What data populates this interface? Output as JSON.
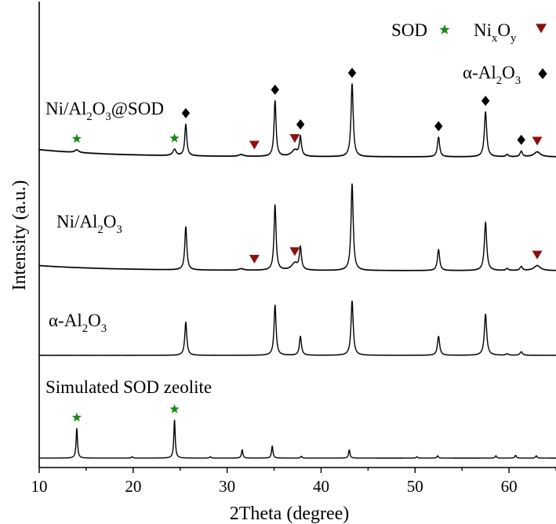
{
  "chart_data": {
    "type": "line",
    "title": "",
    "xlabel": "2Theta (degree)",
    "ylabel": "Intensity (a.u.)",
    "xlim": [
      10,
      65
    ],
    "x_ticks": [
      "10",
      "20",
      "30",
      "40",
      "50",
      "60"
    ],
    "y_ticks_shown": false,
    "legend": {
      "placement": "top-right",
      "entries": [
        {
          "label": "SOD",
          "symbol": "star",
          "color": "#1a8a1a"
        },
        {
          "label_base": "Ni",
          "sub1": "x",
          "label_mid": "O",
          "sub2": "y",
          "symbol": "triangle-down",
          "color": "#8b1010"
        },
        {
          "label_base": "α-Al",
          "sub1": "2",
          "label_mid": "O",
          "sub2": "3",
          "symbol": "diamond",
          "color": "#000000"
        }
      ]
    },
    "series": [
      {
        "name_parts": [
          "Ni/Al",
          "2",
          "O",
          "3",
          "@SOD"
        ],
        "baseline": 0.8,
        "noise": 0.04,
        "peaks": [
          {
            "x": 14.0,
            "h": 0.3,
            "w": 0.25
          },
          {
            "x": 24.4,
            "h": 0.7,
            "w": 0.2
          },
          {
            "x": 25.6,
            "h": 3.5,
            "w": 0.13
          },
          {
            "x": 31.5,
            "h": 0.2,
            "w": 0.3
          },
          {
            "x": 35.1,
            "h": 6.2,
            "w": 0.13
          },
          {
            "x": 37.2,
            "h": 0.7,
            "w": 0.4
          },
          {
            "x": 37.8,
            "h": 2.1,
            "w": 0.13
          },
          {
            "x": 43.3,
            "h": 8.1,
            "w": 0.14
          },
          {
            "x": 52.5,
            "h": 2.2,
            "w": 0.14
          },
          {
            "x": 57.5,
            "h": 5.0,
            "w": 0.15
          },
          {
            "x": 59.8,
            "h": 0.25,
            "w": 0.15
          },
          {
            "x": 61.3,
            "h": 0.6,
            "w": 0.15
          },
          {
            "x": 63.0,
            "h": 0.55,
            "w": 0.4
          }
        ]
      },
      {
        "name_parts": [
          "Ni/Al",
          "2",
          "O",
          "3"
        ],
        "baseline": 0.5,
        "noise": 0.03,
        "peaks": [
          {
            "x": 25.6,
            "h": 4.3,
            "w": 0.13
          },
          {
            "x": 31.5,
            "h": 0.15,
            "w": 0.3
          },
          {
            "x": 35.1,
            "h": 6.5,
            "w": 0.13
          },
          {
            "x": 37.2,
            "h": 0.7,
            "w": 0.4
          },
          {
            "x": 37.8,
            "h": 2.2,
            "w": 0.13
          },
          {
            "x": 43.3,
            "h": 8.6,
            "w": 0.14
          },
          {
            "x": 52.5,
            "h": 2.1,
            "w": 0.14
          },
          {
            "x": 57.5,
            "h": 4.8,
            "w": 0.15
          },
          {
            "x": 59.8,
            "h": 0.2,
            "w": 0.15
          },
          {
            "x": 61.3,
            "h": 0.4,
            "w": 0.15
          },
          {
            "x": 63.0,
            "h": 0.5,
            "w": 0.4
          }
        ]
      },
      {
        "name_parts": [
          "α-Al",
          "2",
          "O",
          "3"
        ],
        "baseline": 0.0,
        "noise": 0.015,
        "peaks": [
          {
            "x": 25.6,
            "h": 3.3,
            "w": 0.13
          },
          {
            "x": 35.1,
            "h": 5.0,
            "w": 0.13
          },
          {
            "x": 37.8,
            "h": 1.9,
            "w": 0.13
          },
          {
            "x": 43.3,
            "h": 5.4,
            "w": 0.14
          },
          {
            "x": 52.5,
            "h": 1.9,
            "w": 0.14
          },
          {
            "x": 57.5,
            "h": 4.1,
            "w": 0.15
          },
          {
            "x": 59.8,
            "h": 0.15,
            "w": 0.15
          },
          {
            "x": 61.3,
            "h": 0.35,
            "w": 0.15
          }
        ]
      },
      {
        "name_parts": [
          "Simulated SOD zeolite"
        ],
        "baseline": 0.0,
        "noise": 0.0,
        "peaks": [
          {
            "x": 14.0,
            "h": 3.2,
            "w": 0.09
          },
          {
            "x": 19.9,
            "h": 0.15,
            "w": 0.09
          },
          {
            "x": 24.4,
            "h": 4.1,
            "w": 0.09
          },
          {
            "x": 28.2,
            "h": 0.15,
            "w": 0.09
          },
          {
            "x": 31.6,
            "h": 0.9,
            "w": 0.09
          },
          {
            "x": 34.8,
            "h": 1.3,
            "w": 0.09
          },
          {
            "x": 37.9,
            "h": 0.2,
            "w": 0.09
          },
          {
            "x": 43.0,
            "h": 0.9,
            "w": 0.09
          },
          {
            "x": 50.2,
            "h": 0.15,
            "w": 0.09
          },
          {
            "x": 52.4,
            "h": 0.25,
            "w": 0.09
          },
          {
            "x": 58.6,
            "h": 0.25,
            "w": 0.09
          },
          {
            "x": 60.7,
            "h": 0.3,
            "w": 0.09
          },
          {
            "x": 62.9,
            "h": 0.25,
            "w": 0.09
          }
        ]
      }
    ],
    "markers": [
      {
        "series": 0,
        "symbol": "star",
        "x": 14.0
      },
      {
        "series": 0,
        "symbol": "star",
        "x": 24.4
      },
      {
        "series": 0,
        "symbol": "diamond",
        "x": 25.6
      },
      {
        "series": 0,
        "symbol": "triangle-down",
        "x": 32.9
      },
      {
        "series": 0,
        "symbol": "diamond",
        "x": 35.1
      },
      {
        "series": 0,
        "symbol": "triangle-down",
        "x": 37.2
      },
      {
        "series": 0,
        "symbol": "diamond",
        "x": 37.8
      },
      {
        "series": 0,
        "symbol": "diamond",
        "x": 43.3
      },
      {
        "series": 0,
        "symbol": "diamond",
        "x": 52.5
      },
      {
        "series": 0,
        "symbol": "diamond",
        "x": 57.5
      },
      {
        "series": 0,
        "symbol": "diamond",
        "x": 61.3
      },
      {
        "series": 0,
        "symbol": "triangle-down",
        "x": 63.0
      },
      {
        "series": 1,
        "symbol": "triangle-down",
        "x": 32.9
      },
      {
        "series": 1,
        "symbol": "triangle-down",
        "x": 37.2
      },
      {
        "series": 1,
        "symbol": "triangle-down",
        "x": 63.0
      },
      {
        "series": 3,
        "symbol": "star",
        "x": 14.0
      },
      {
        "series": 3,
        "symbol": "star",
        "x": 24.4
      }
    ]
  }
}
